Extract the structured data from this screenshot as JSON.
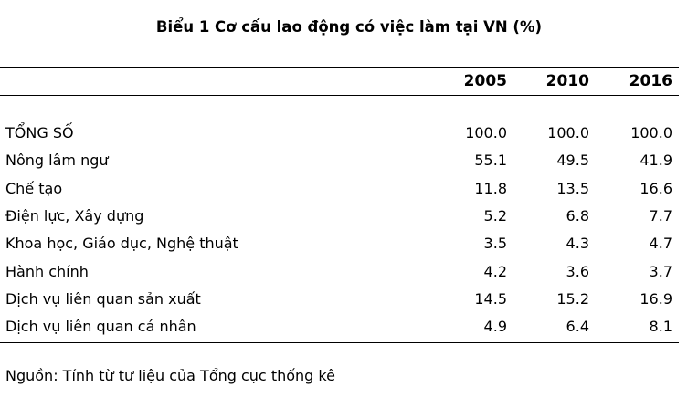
{
  "title": "Biểu 1  Cơ cấu lao động có việc làm tại VN (%)",
  "table": {
    "columns": [
      "2005",
      "2010",
      "2016"
    ],
    "rows": [
      {
        "label": "TỔNG SỐ",
        "values": [
          "100.0",
          "100.0",
          "100.0"
        ]
      },
      {
        "label": "Nông lâm ngư",
        "values": [
          "55.1",
          "49.5",
          "41.9"
        ]
      },
      {
        "label": "Chế tạo",
        "values": [
          "11.8",
          "13.5",
          "16.6"
        ]
      },
      {
        "label": "Điện lực, Xây dựng",
        "values": [
          "5.2",
          "6.8",
          "7.7"
        ]
      },
      {
        "label": "Khoa học, Giáo dục, Nghệ thuật",
        "values": [
          "3.5",
          "4.3",
          "4.7"
        ]
      },
      {
        "label": "Hành chính",
        "values": [
          "4.2",
          "3.6",
          "3.7"
        ]
      },
      {
        "label": "Dịch vụ liên quan sản xuất",
        "values": [
          "14.5",
          "15.2",
          "16.9"
        ]
      },
      {
        "label": "Dịch vụ liên quan cá nhân",
        "values": [
          "4.9",
          "6.4",
          "8.1"
        ]
      }
    ]
  },
  "source": "Nguồn: Tính từ tư liệu của Tổng cục thống kê"
}
